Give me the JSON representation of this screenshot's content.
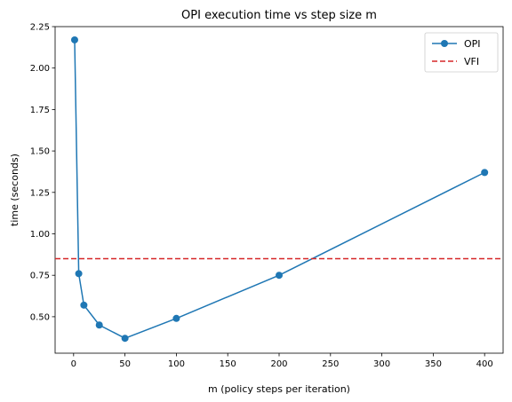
{
  "chart_data": {
    "type": "line",
    "title": "OPI execution time vs step size m",
    "xlabel": "m (policy steps per iteration)",
    "ylabel": "time (seconds)",
    "xlim": [
      -18,
      418
    ],
    "ylim": [
      0.28,
      2.25
    ],
    "xticks": [
      0,
      50,
      100,
      150,
      200,
      250,
      300,
      350,
      400
    ],
    "xtick_labels": [
      "0",
      "50",
      "100",
      "150",
      "200",
      "250",
      "300",
      "350",
      "400"
    ],
    "yticks": [
      0.5,
      0.75,
      1.0,
      1.25,
      1.5,
      1.75,
      2.0,
      2.25
    ],
    "ytick_labels": [
      "0.50",
      "0.75",
      "1.00",
      "1.25",
      "1.50",
      "1.75",
      "2.00",
      "2.25"
    ],
    "grid": false,
    "legend_position": "top-right",
    "series": [
      {
        "name": "OPI",
        "style": "line-marker",
        "color": "#1f77b4",
        "x": [
          1,
          5,
          10,
          25,
          50,
          100,
          200,
          400
        ],
        "y": [
          2.17,
          0.76,
          0.57,
          0.45,
          0.37,
          0.49,
          0.75,
          1.37
        ]
      },
      {
        "name": "VFI",
        "style": "dashed-hline",
        "color": "#d62728",
        "y": 0.85
      }
    ]
  }
}
